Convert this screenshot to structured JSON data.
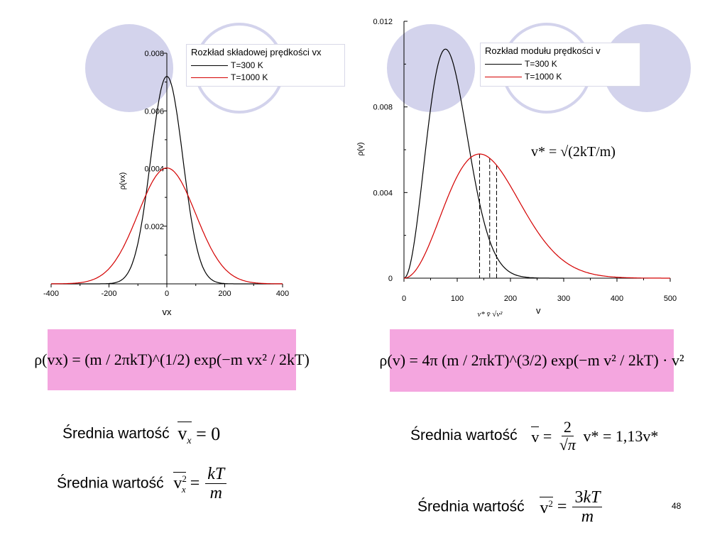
{
  "left_chart": {
    "ylabel": "ρ(vx)",
    "xlabel": "vx",
    "xticks": [
      "-400",
      "-200",
      "0",
      "200",
      "400"
    ],
    "yticks": [
      "0.002",
      "0.004",
      "0.006",
      "0.008"
    ],
    "legend": {
      "title": "Rozkład składowej prędkości vx",
      "entries": [
        "T=300 K",
        "T=1000 K"
      ]
    }
  },
  "right_chart": {
    "ylabel": "ρ(v)",
    "xlabel": "v",
    "xticks": [
      "0",
      "100",
      "200",
      "300",
      "400",
      "500"
    ],
    "yticks": [
      "0",
      "0.004",
      "0.008",
      "0.012"
    ],
    "legend": {
      "title": "Rozkład modułu prędkości v",
      "entries": [
        "T=300 K",
        "T=1000 K"
      ]
    },
    "marker_label": "v* v̄ √v²",
    "vstar_formula": "v* = √(2kT/m)"
  },
  "chart_data": [
    {
      "type": "line",
      "xlabel": "vx",
      "ylabel": "ρ(vx)",
      "xlim": [
        -400,
        400
      ],
      "ylim": [
        0,
        0.008
      ],
      "legend_placement": "top-right",
      "series": [
        {
          "name": "T=300 K",
          "color": "#000000",
          "x": [
            -400,
            -200,
            -100,
            -50,
            0,
            50,
            100,
            200,
            400
          ],
          "y": [
            0.0,
            0.0,
            0.00114,
            0.00442,
            0.0072,
            0.00442,
            0.00114,
            0.0,
            0.0
          ]
        },
        {
          "name": "T=1000 K",
          "color": "#d40000",
          "x": [
            -400,
            -200,
            -100,
            0,
            100,
            200,
            400
          ],
          "y": [
            1e-05,
            0.00075,
            0.00265,
            0.00402,
            0.00265,
            0.00075,
            1e-05
          ]
        }
      ]
    },
    {
      "type": "line",
      "xlabel": "v",
      "ylabel": "ρ(v)",
      "xlim": [
        0,
        500
      ],
      "ylim": [
        0,
        0.012
      ],
      "legend_placement": "top-right",
      "series": [
        {
          "name": "T=300 K",
          "color": "#000000",
          "x": [
            0,
            25,
            50,
            78,
            100,
            150,
            200,
            300
          ],
          "y": [
            0,
            0.0026,
            0.0084,
            0.0107,
            0.0094,
            0.0033,
            0.0005,
            0.0
          ]
        },
        {
          "name": "T=1000 K",
          "color": "#d40000",
          "x": [
            0,
            50,
            100,
            142,
            200,
            300,
            400,
            500
          ],
          "y": [
            0,
            0.0015,
            0.0047,
            0.0058,
            0.0047,
            0.0014,
            0.0002,
            0.0
          ]
        }
      ],
      "markers": [
        142,
        161,
        174
      ]
    }
  ],
  "formulas": {
    "left": "ρ(vx) = (m / 2πkT)^(1/2) exp(−m vx² / 2kT)",
    "right": "ρ(v) = 4π (m / 2πkT)^(3/2) exp(−m v² / 2kT) · v²"
  },
  "captions": {
    "srednia": "Średnia wartość"
  },
  "page_number": "48",
  "colors": {
    "formula_bg": "#f4a6df",
    "circle_fill": "#d3d3ec",
    "circle_stroke": "#d3d3ec",
    "red_curve": "#d40000"
  }
}
